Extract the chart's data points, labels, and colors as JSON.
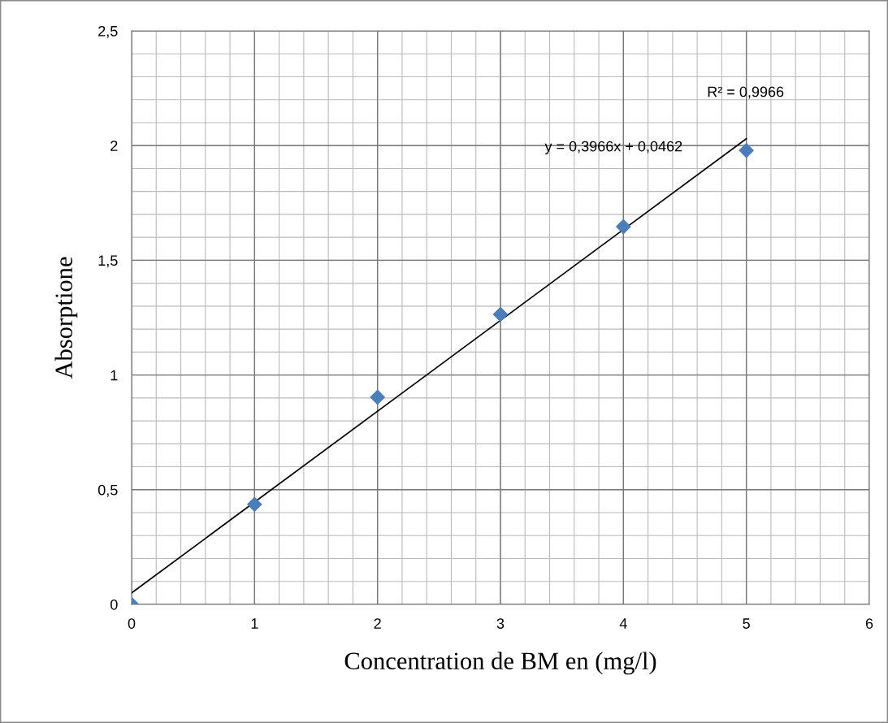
{
  "chart_data": {
    "type": "scatter",
    "xlabel": "Concentration de BM en (mg/l)",
    "ylabel": "Absorptione",
    "series": [
      {
        "color": "#4a7ebb",
        "marker": "diamond",
        "x": [
          0,
          1,
          2,
          3,
          4,
          5
        ],
        "values": [
          0,
          0.436,
          0.903,
          1.264,
          1.647,
          1.979
        ]
      },
      {
        "type": "line",
        "color": "#000000",
        "marker": "none",
        "x": [
          0,
          5
        ],
        "values": [
          0.05,
          2.03
        ]
      }
    ],
    "xlim": [
      0,
      6
    ],
    "xticks": [
      0,
      1,
      2,
      3,
      4,
      5,
      6
    ],
    "ylim": [
      0,
      2.5
    ],
    "yticks": [
      0,
      {
        "value": 0.5,
        "label": "0,5"
      },
      1,
      {
        "value": 1.5,
        "label": "1,5"
      },
      2,
      {
        "value": 2.5,
        "label": "2,5"
      }
    ],
    "grid": true,
    "legend": false,
    "annotations": [
      "R² = 0,9966",
      "y = 0,3966x + 0,0462"
    ]
  }
}
